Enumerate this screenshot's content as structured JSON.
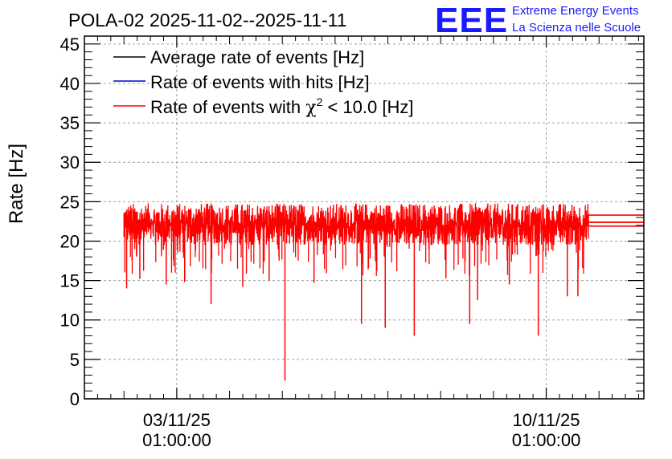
{
  "chart_data": {
    "type": "line",
    "title": "POLA-02 2025-11-02--2025-11-11",
    "ylabel": "Rate [Hz]",
    "xlabel": "",
    "ylim": [
      0,
      46
    ],
    "y_ticks": [
      0,
      5,
      10,
      15,
      20,
      25,
      30,
      35,
      40,
      45
    ],
    "x_range_days": [
      -1.75,
      8.85
    ],
    "x_ticks": [
      {
        "day": 0,
        "date": "03/11/25",
        "time": "01:00:00"
      },
      {
        "day": 7,
        "date": "10/11/25",
        "time": "01:00:00"
      }
    ],
    "data_span_days": [
      -1.0,
      7.8
    ],
    "grid": true,
    "legend": {
      "placement": "top-left",
      "entries": [
        {
          "label": "Average rate of events [Hz]",
          "color": "#000000"
        },
        {
          "label": "Rate of events with hits [Hz]",
          "color": "#0000cc"
        },
        {
          "label_pre": "Rate of events with ",
          "label_chi": "χ",
          "label_sup": "2",
          "label_post": " < 10.0 [Hz]",
          "color": "#ff0000"
        }
      ]
    },
    "series": [
      {
        "name": "Average rate of events [Hz]",
        "color": "#000000",
        "mean": 22.4
      },
      {
        "name": "Rate of events with hits [Hz]",
        "color": "#0000cc",
        "mean": 22.4,
        "band": [
          19.5,
          24.8
        ]
      },
      {
        "name": "Rate of events with chi2 < 10.0 [Hz]",
        "color": "#ff0000",
        "mean": 22.3,
        "band": [
          19.5,
          24.8
        ],
        "dips": [
          {
            "day": -0.95,
            "value": 14.0
          },
          {
            "day": -0.7,
            "value": 15.2
          },
          {
            "day": -0.2,
            "value": 14.5
          },
          {
            "day": 0.15,
            "value": 14.8
          },
          {
            "day": 0.65,
            "value": 12.0
          },
          {
            "day": 1.25,
            "value": 14.2
          },
          {
            "day": 1.75,
            "value": 15.0
          },
          {
            "day": 2.05,
            "value": 2.3
          },
          {
            "day": 2.6,
            "value": 14.7
          },
          {
            "day": 3.5,
            "value": 9.5
          },
          {
            "day": 3.95,
            "value": 9.0
          },
          {
            "day": 4.5,
            "value": 8.0
          },
          {
            "day": 5.1,
            "value": 15.3
          },
          {
            "day": 5.55,
            "value": 9.5
          },
          {
            "day": 5.7,
            "value": 12.5
          },
          {
            "day": 6.3,
            "value": 14.5
          },
          {
            "day": 6.85,
            "value": 8.0
          },
          {
            "day": 7.4,
            "value": 13.0
          },
          {
            "day": 7.6,
            "value": 13.0
          }
        ]
      }
    ]
  },
  "logo": {
    "text": "EEE",
    "line1": "Extreme Energy Events",
    "line2": "La Scienza nelle Scuole"
  }
}
